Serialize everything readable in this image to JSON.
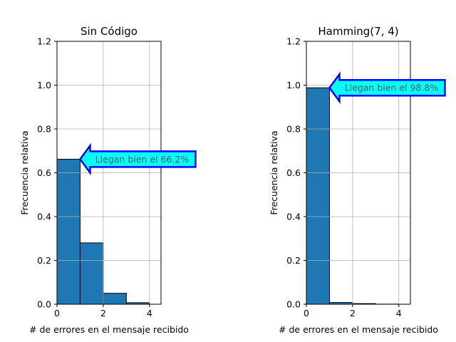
{
  "chart_data": [
    {
      "type": "bar",
      "title": "Sin Código",
      "xlabel": "# de errores en el mensaje recibido",
      "ylabel": "Frecuencia relativa",
      "bin_edges": [
        0,
        1,
        2,
        3,
        4
      ],
      "values": [
        0.662,
        0.28,
        0.05,
        0.007
      ],
      "xlim": [
        0,
        4.5
      ],
      "ylim": [
        0,
        1.2
      ],
      "xticks": [
        0,
        2,
        4
      ],
      "yticks": [
        0.0,
        0.2,
        0.4,
        0.6,
        0.8,
        1.0,
        1.2
      ],
      "grid": true,
      "bar_color": "#1f77b4",
      "annotation": {
        "text": "Llegan bien el 66.2%",
        "point": [
          1,
          0.662
        ],
        "box_fill": "#00ffff",
        "box_edge": "#0000ff"
      }
    },
    {
      "type": "bar",
      "title": "Hamming(7, 4)",
      "xlabel": "# de errores en el mensaje recibido",
      "ylabel": "Frecuencia relativa",
      "bin_edges": [
        0,
        1,
        2,
        3,
        4
      ],
      "values": [
        0.988,
        0.008,
        0.003,
        0.0005
      ],
      "xlim": [
        0,
        4.5
      ],
      "ylim": [
        0,
        1.2
      ],
      "xticks": [
        0,
        2,
        4
      ],
      "yticks": [
        0.0,
        0.2,
        0.4,
        0.6,
        0.8,
        1.0,
        1.2
      ],
      "grid": true,
      "bar_color": "#1f77b4",
      "annotation": {
        "text": "Llegan bien el 98.8%",
        "point": [
          1,
          0.988
        ],
        "box_fill": "#00ffff",
        "box_edge": "#0000ff"
      }
    }
  ]
}
